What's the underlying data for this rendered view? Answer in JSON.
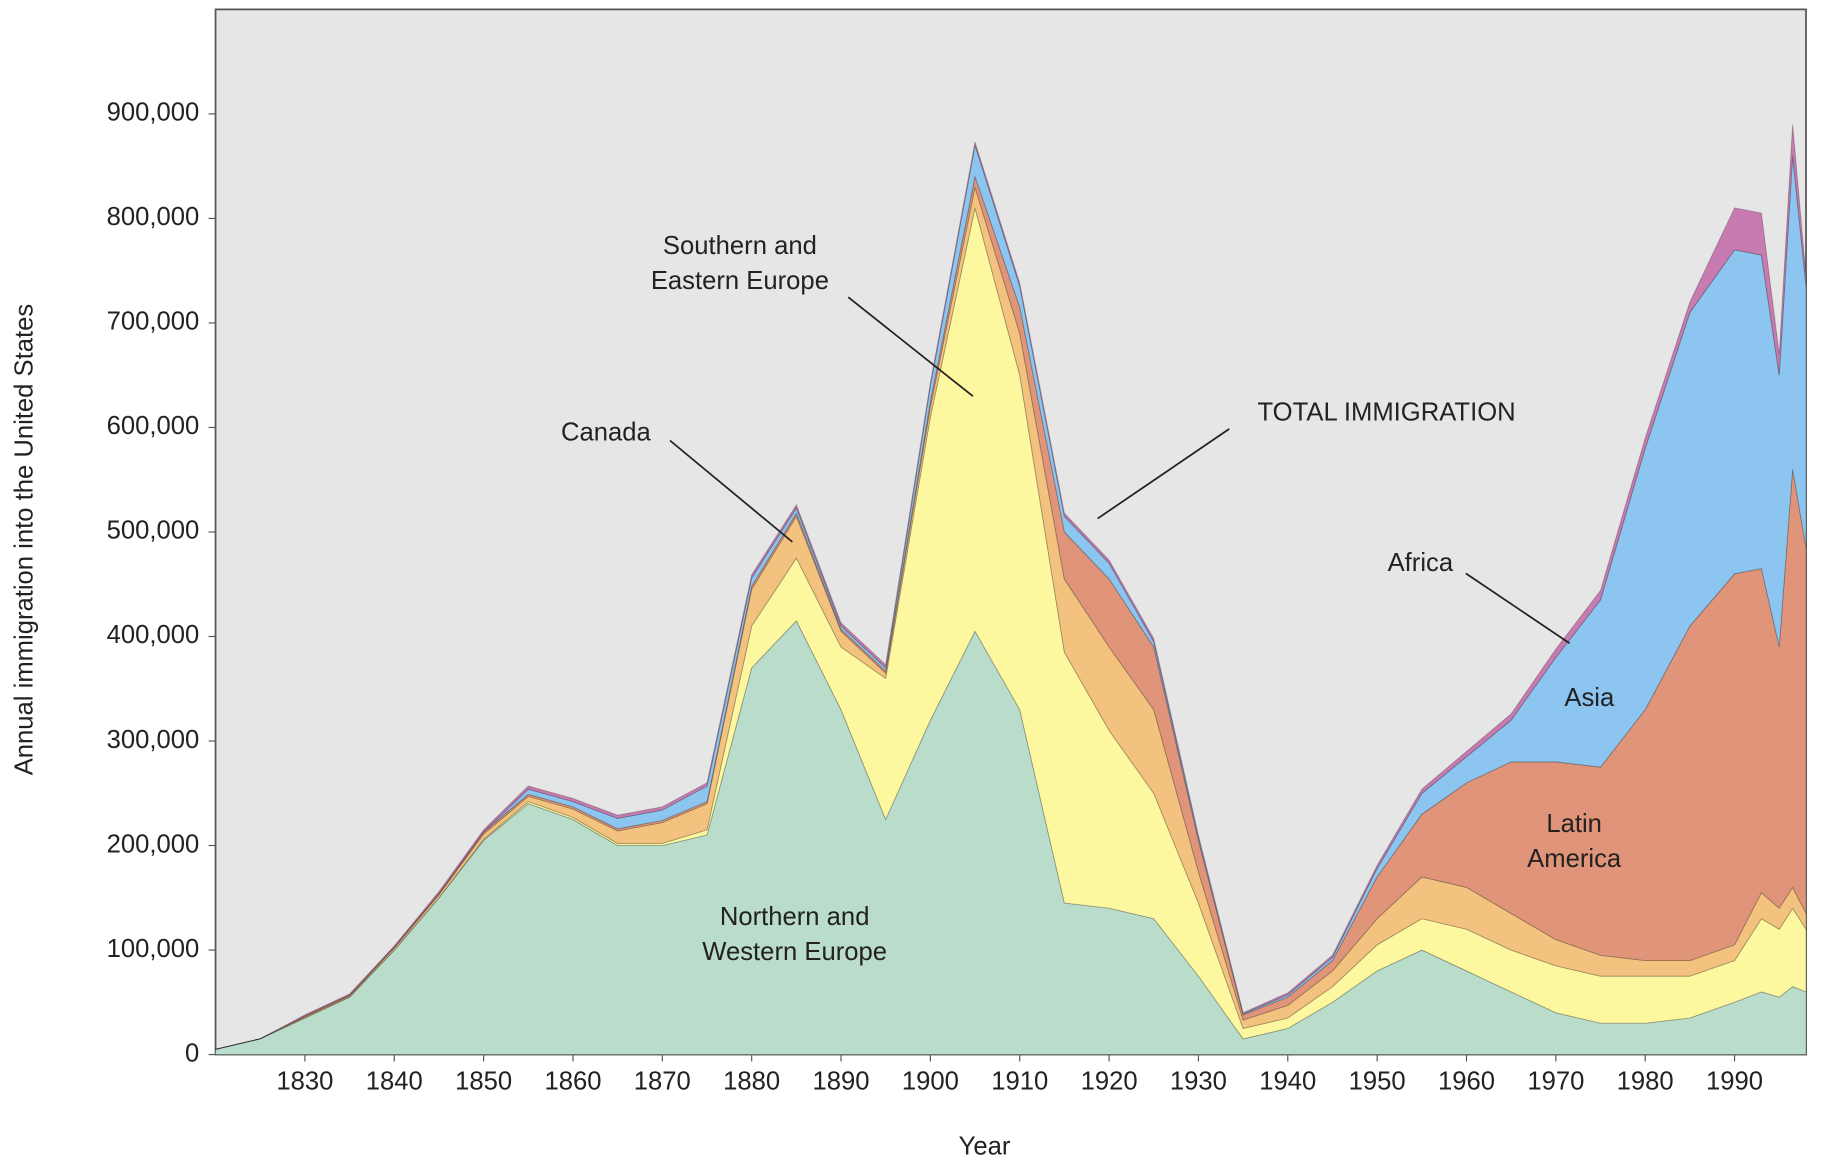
{
  "chart_data": {
    "type": "stacked_area",
    "xlabel": "Year",
    "ylabel": "Annual immigration into the United States",
    "annotations": [
      "TOTAL IMMIGRATION"
    ],
    "x": [
      1820,
      1825,
      1830,
      1835,
      1840,
      1845,
      1850,
      1855,
      1860,
      1865,
      1870,
      1875,
      1880,
      1885,
      1890,
      1895,
      1900,
      1905,
      1910,
      1915,
      1920,
      1925,
      1930,
      1935,
      1940,
      1945,
      1950,
      1955,
      1960,
      1965,
      1970,
      1975,
      1980,
      1985,
      1990,
      1993,
      1995,
      1996.5,
      1998
    ],
    "series": [
      {
        "name": "Northern and Western Europe",
        "color": "#b9dccb",
        "values": [
          5,
          15,
          35,
          55,
          100,
          150,
          205,
          240,
          225,
          200,
          200,
          210,
          370,
          415,
          330,
          225,
          320,
          405,
          330,
          145,
          140,
          130,
          75,
          15,
          25,
          50,
          80,
          100,
          80,
          60,
          40,
          30,
          30,
          35,
          50,
          60,
          55,
          65,
          60
        ]
      },
      {
        "name": "Southern and Eastern Europe",
        "color": "#fdf8a0",
        "values": [
          0,
          0,
          0,
          0,
          0,
          0,
          1,
          2,
          2,
          2,
          2,
          5,
          40,
          60,
          60,
          135,
          290,
          405,
          320,
          240,
          170,
          120,
          70,
          10,
          10,
          15,
          25,
          30,
          40,
          40,
          45,
          45,
          45,
          40,
          40,
          70,
          65,
          75,
          60
        ]
      },
      {
        "name": "Canada",
        "color": "#f2c27e",
        "values": [
          0,
          0,
          1,
          1,
          2,
          3,
          5,
          5,
          8,
          12,
          20,
          25,
          35,
          40,
          15,
          5,
          10,
          20,
          40,
          70,
          80,
          80,
          30,
          8,
          12,
          15,
          25,
          40,
          40,
          35,
          25,
          20,
          15,
          15,
          15,
          25,
          20,
          20,
          15
        ]
      },
      {
        "name": "Latin America",
        "color": "#e0957a",
        "values": [
          0,
          0,
          1,
          1,
          1,
          1,
          2,
          2,
          2,
          2,
          2,
          2,
          3,
          3,
          2,
          2,
          5,
          10,
          25,
          45,
          65,
          60,
          30,
          5,
          8,
          10,
          40,
          60,
          100,
          145,
          170,
          180,
          240,
          320,
          355,
          310,
          250,
          400,
          350
        ]
      },
      {
        "name": "Asia",
        "color": "#8cc5ef",
        "values": [
          0,
          0,
          0,
          0,
          0,
          0,
          0,
          5,
          5,
          10,
          10,
          15,
          8,
          5,
          3,
          3,
          15,
          30,
          20,
          15,
          15,
          5,
          3,
          1,
          2,
          3,
          8,
          20,
          25,
          40,
          100,
          160,
          250,
          300,
          310,
          300,
          260,
          300,
          250
        ]
      },
      {
        "name": "Africa",
        "color": "#c87bb0",
        "values": [
          0,
          0,
          1,
          1,
          1,
          2,
          2,
          3,
          3,
          3,
          3,
          3,
          3,
          3,
          3,
          3,
          3,
          3,
          3,
          3,
          3,
          3,
          2,
          1,
          2,
          2,
          3,
          4,
          5,
          6,
          8,
          9,
          10,
          10,
          40,
          40,
          20,
          30,
          10
        ]
      }
    ],
    "value_scale": 1000,
    "xlim": [
      1820,
      1998
    ],
    "ylim": [
      0,
      1000000
    ],
    "xticks": [
      1830,
      1840,
      1850,
      1860,
      1870,
      1880,
      1890,
      1900,
      1910,
      1920,
      1930,
      1940,
      1950,
      1960,
      1970,
      1980,
      1990
    ],
    "yticks": [
      0,
      {
        "value": 100000,
        "label": "100,000"
      },
      {
        "value": 200000,
        "label": "200,000"
      },
      {
        "value": 300000,
        "label": "300,000"
      },
      {
        "value": 400000,
        "label": "400,000"
      },
      {
        "value": 500000,
        "label": "500,000"
      },
      {
        "value": 600000,
        "label": "600,000"
      },
      {
        "value": 700000,
        "label": "700,000"
      },
      {
        "value": 800000,
        "label": "800,000"
      },
      {
        "value": 900000,
        "label": "900,000"
      }
    ]
  }
}
